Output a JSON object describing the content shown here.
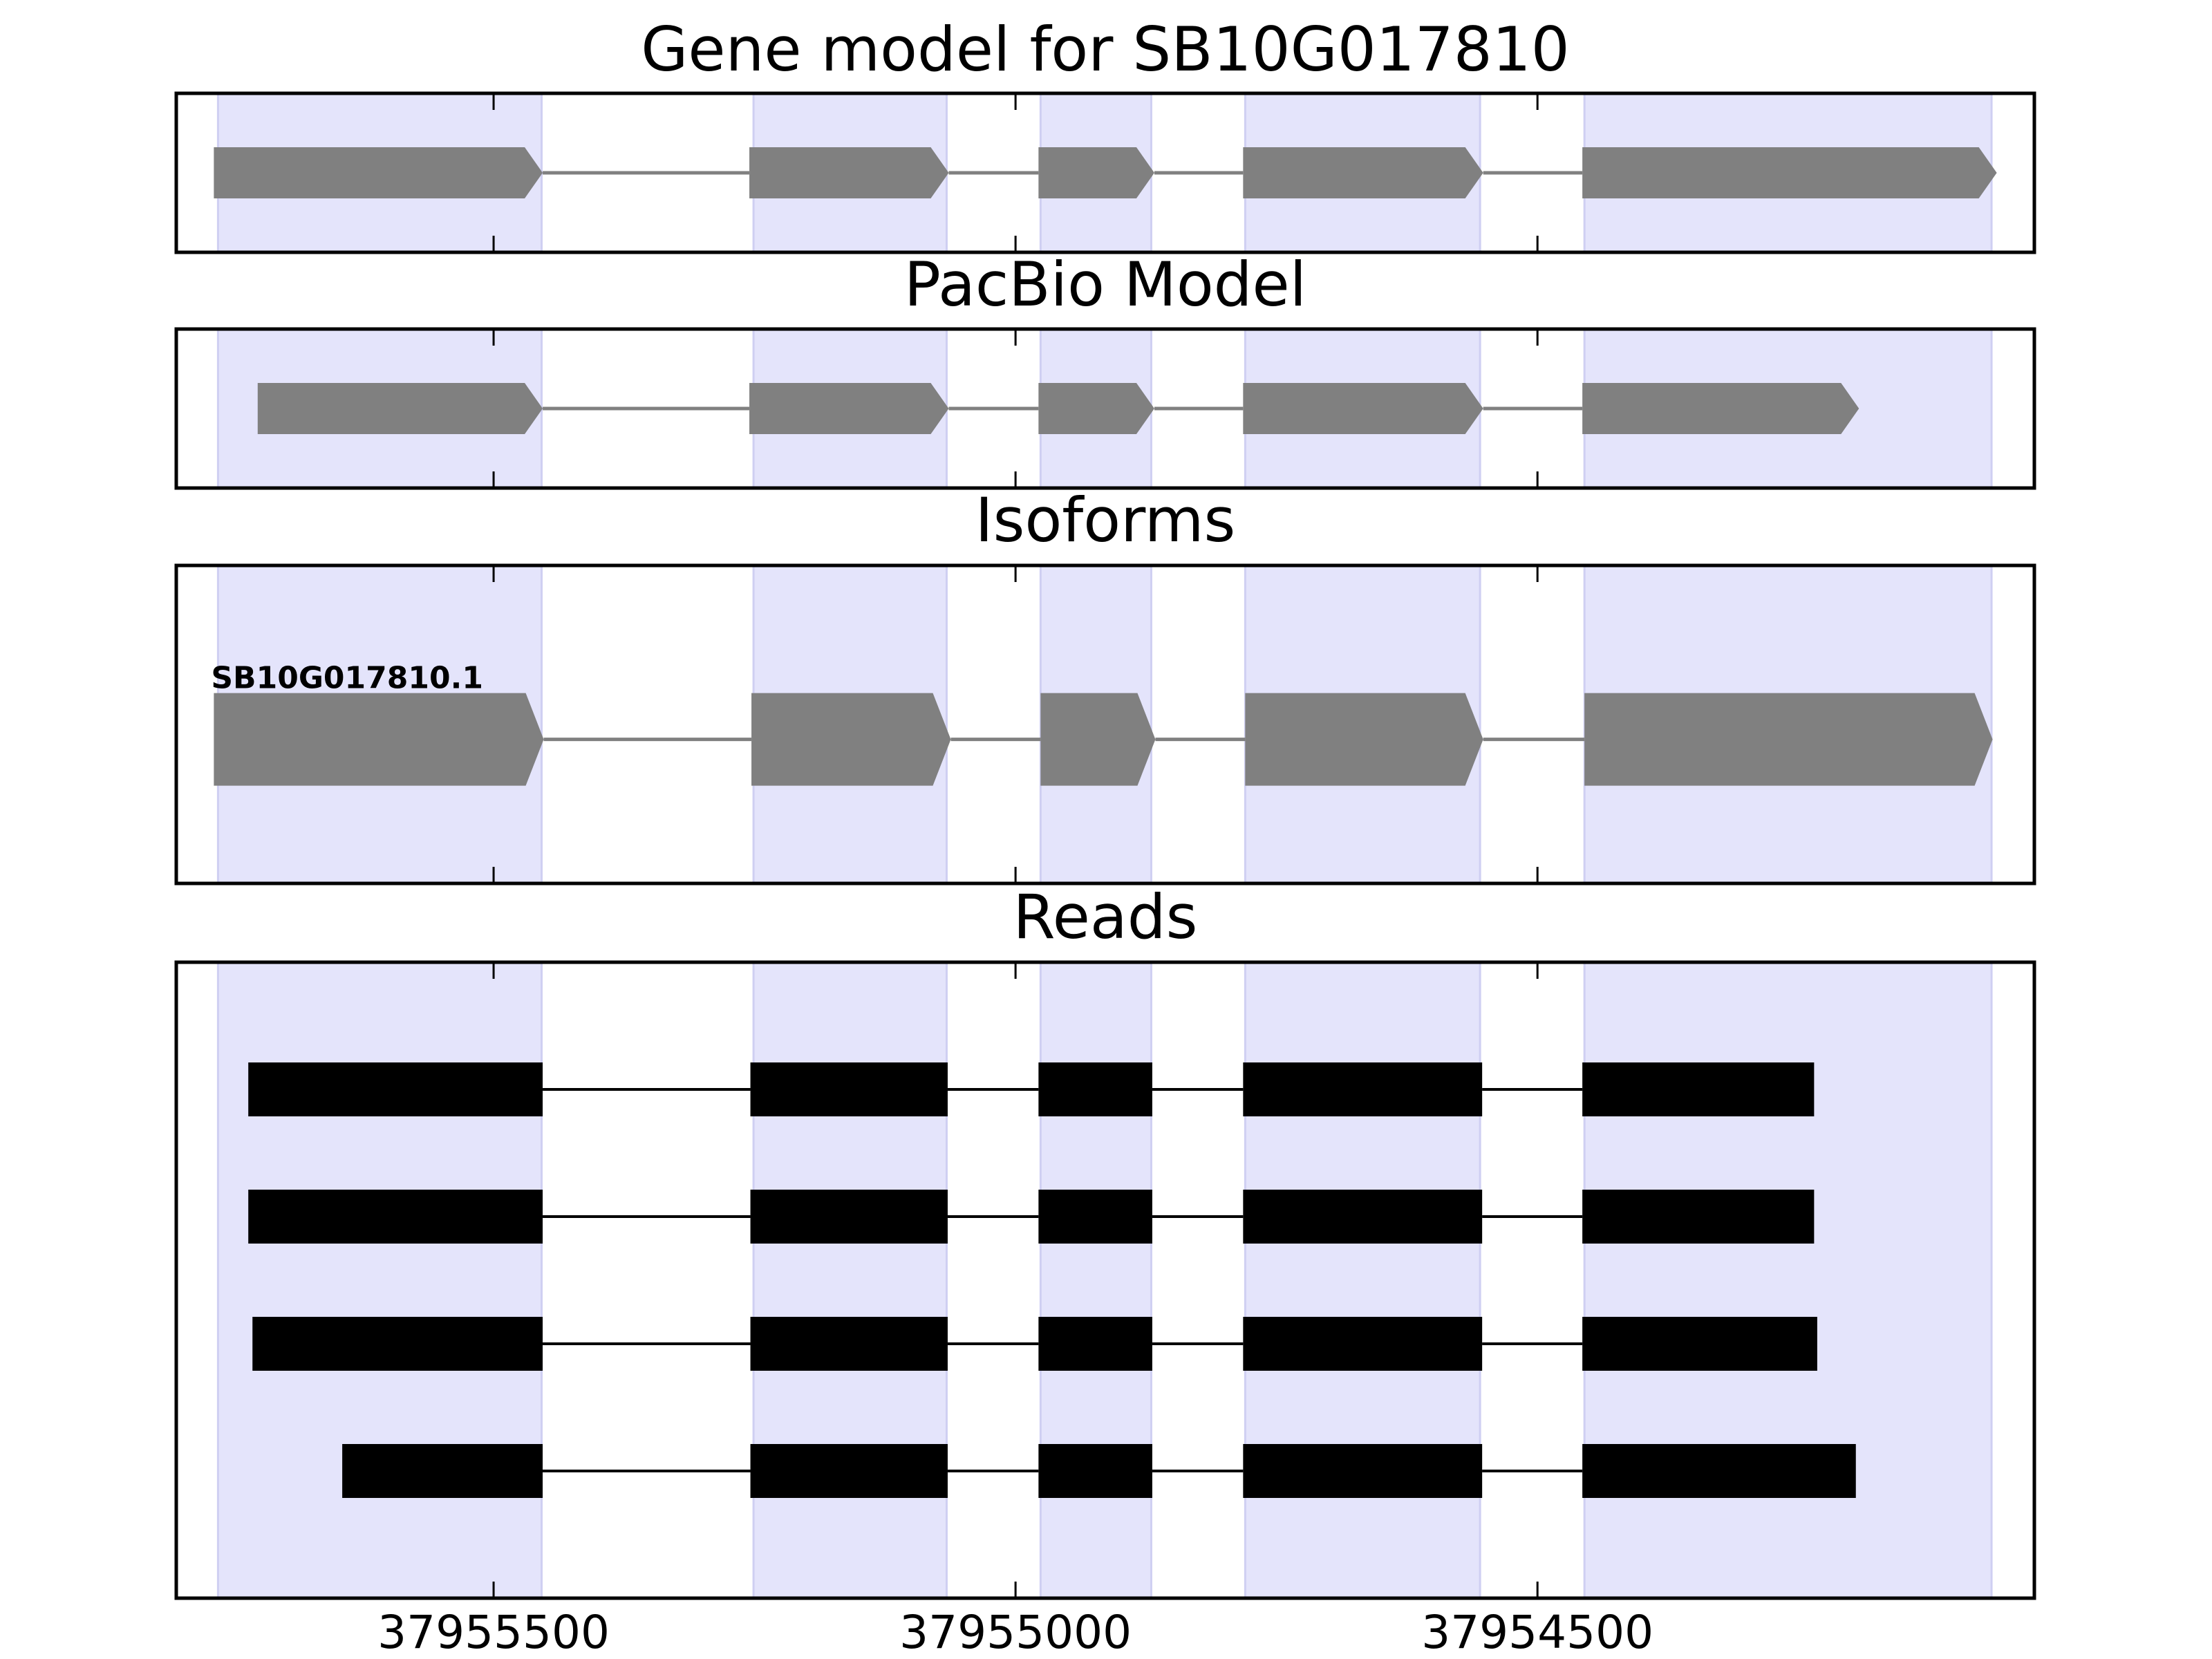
{
  "chart_data": [
    {
      "type": "gene_track",
      "title": "Gene model for SB10G017810",
      "xlim": [
        37955804,
        37954024
      ],
      "xticks": [
        37955500,
        37955000,
        37954500
      ],
      "highlight_regions": [
        [
          37955764,
          37955454
        ],
        [
          37955251,
          37955066
        ],
        [
          37954976,
          37954870
        ],
        [
          37954780,
          37954555
        ],
        [
          37954455,
          37954065
        ]
      ],
      "highlight_color": "#e4e4fb",
      "color": "#808080",
      "style": "arrow",
      "tracks": [
        {
          "exons": [
            [
              37955768,
              37955453
            ],
            [
              37955255,
              37955064
            ],
            [
              37954978,
              37954867
            ],
            [
              37954782,
              37954552
            ],
            [
              37954457,
              37954060
            ]
          ]
        }
      ]
    },
    {
      "type": "gene_track",
      "title": "PacBio Model",
      "xlim": [
        37955804,
        37954024
      ],
      "xticks": [
        37955500,
        37955000,
        37954500
      ],
      "highlight_regions": [
        [
          37955764,
          37955454
        ],
        [
          37955251,
          37955066
        ],
        [
          37954976,
          37954870
        ],
        [
          37954780,
          37954555
        ],
        [
          37954455,
          37954065
        ]
      ],
      "highlight_color": "#e4e4fb",
      "color": "#808080",
      "style": "arrow",
      "tracks": [
        {
          "exons": [
            [
              37955726,
              37955453
            ],
            [
              37955255,
              37955064
            ],
            [
              37954978,
              37954867
            ],
            [
              37954782,
              37954552
            ],
            [
              37954457,
              37954192
            ]
          ]
        }
      ]
    },
    {
      "type": "gene_track",
      "title": "Isoforms",
      "xlim": [
        37955804,
        37954024
      ],
      "xticks": [
        37955500,
        37955000,
        37954500
      ],
      "highlight_regions": [
        [
          37955764,
          37955454
        ],
        [
          37955251,
          37955066
        ],
        [
          37954976,
          37954870
        ],
        [
          37954780,
          37954555
        ],
        [
          37954455,
          37954065
        ]
      ],
      "highlight_color": "#e4e4fb",
      "color": "#808080",
      "style": "arrow",
      "tracks": [
        {
          "name": "SB10G017810.1",
          "exons": [
            [
              37955768,
              37955452
            ],
            [
              37955253,
              37955062
            ],
            [
              37954976,
              37954866
            ],
            [
              37954780,
              37954552
            ],
            [
              37954455,
              37954064
            ]
          ]
        }
      ]
    },
    {
      "type": "reads",
      "title": "Reads",
      "xlim": [
        37955804,
        37954024
      ],
      "xticks": [
        37955500,
        37955000,
        37954500
      ],
      "highlight_regions": [
        [
          37955764,
          37955454
        ],
        [
          37955251,
          37955066
        ],
        [
          37954976,
          37954870
        ],
        [
          37954780,
          37954555
        ],
        [
          37954455,
          37954065
        ]
      ],
      "highlight_color": "#e4e4fb",
      "color": "#000000",
      "style": "box",
      "tracks": [
        {
          "exons": [
            [
              37955735,
              37955453
            ],
            [
              37955254,
              37955065
            ],
            [
              37954978,
              37954869
            ],
            [
              37954782,
              37954553
            ],
            [
              37954457,
              37954235
            ]
          ]
        },
        {
          "exons": [
            [
              37955735,
              37955453
            ],
            [
              37955254,
              37955065
            ],
            [
              37954978,
              37954869
            ],
            [
              37954782,
              37954553
            ],
            [
              37954457,
              37954235
            ]
          ]
        },
        {
          "exons": [
            [
              37955731,
              37955453
            ],
            [
              37955254,
              37955065
            ],
            [
              37954978,
              37954869
            ],
            [
              37954782,
              37954553
            ],
            [
              37954457,
              37954232
            ]
          ]
        },
        {
          "exons": [
            [
              37955645,
              37955453
            ],
            [
              37955254,
              37955065
            ],
            [
              37954978,
              37954869
            ],
            [
              37954782,
              37954553
            ],
            [
              37954457,
              37954195
            ]
          ]
        }
      ]
    }
  ]
}
